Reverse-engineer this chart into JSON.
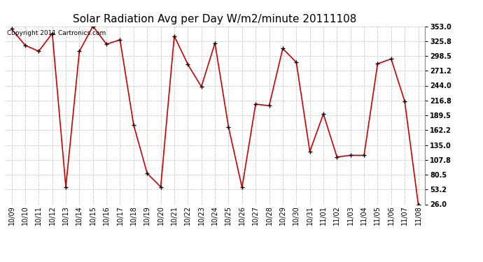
{
  "title": "Solar Radiation Avg per Day W/m2/minute 20111108",
  "copyright": "Copyright 2011 Cartronics.com",
  "labels": [
    "10/09",
    "10/10",
    "10/11",
    "10/12",
    "10/13",
    "10/14",
    "10/15",
    "10/16",
    "10/17",
    "10/18",
    "10/19",
    "10/20",
    "10/21",
    "10/22",
    "10/23",
    "10/24",
    "10/25",
    "10/26",
    "10/27",
    "10/28",
    "10/29",
    "10/30",
    "10/31",
    "11/01",
    "11/02",
    "11/03",
    "11/04",
    "11/05",
    "11/06",
    "11/07",
    "11/08"
  ],
  "values": [
    348,
    318,
    307,
    340,
    58,
    307,
    353,
    320,
    328,
    172,
    83,
    58,
    335,
    283,
    242,
    322,
    168,
    57,
    210,
    207,
    312,
    287,
    123,
    192,
    113,
    116,
    116,
    284,
    293,
    215,
    26
  ],
  "ylim_min": 26.0,
  "ylim_max": 353.0,
  "yticks": [
    26.0,
    53.2,
    80.5,
    107.8,
    135.0,
    162.2,
    189.5,
    216.8,
    244.0,
    271.2,
    298.5,
    325.8,
    353.0
  ],
  "line_color": "#cc0000",
  "marker_color": "#000000",
  "bg_color": "#ffffff",
  "grid_color": "#c8c8c8",
  "title_fontsize": 11,
  "tick_fontsize": 7,
  "copyright_fontsize": 6.5
}
